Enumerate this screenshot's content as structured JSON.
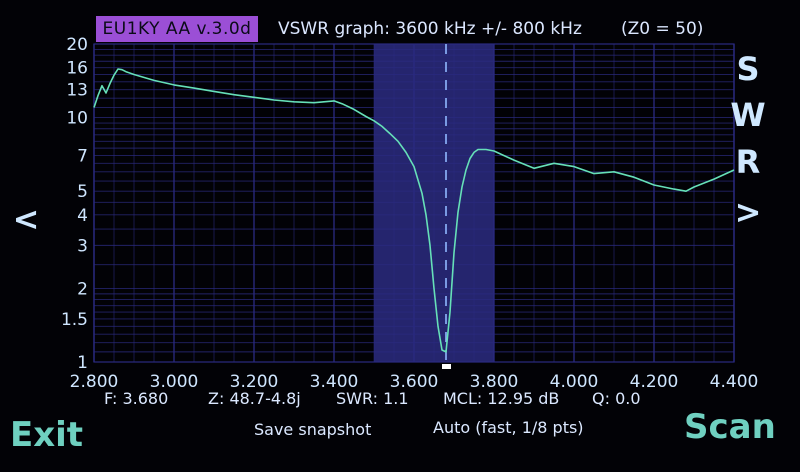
{
  "header": {
    "version_badge": "EU1KY AA v.3.0d",
    "graph_title": "VSWR graph: 3600 kHz +/- 800 kHz",
    "z0": "(Z0 = 50)"
  },
  "side_labels": {
    "prev": "<",
    "next": ">",
    "swr_letters": [
      "S",
      "W",
      "R"
    ]
  },
  "status": {
    "freq": "F: 3.680",
    "impedance": "Z: 48.7-4.8j",
    "swr": "SWR: 1.1",
    "mcl": "MCL: 12.95 dB",
    "q": "Q: 0.0"
  },
  "actions": {
    "exit": "Exit",
    "save_snapshot": "Save snapshot",
    "auto_mode": "Auto (fast, 1/8 pts)",
    "scan": "Scan"
  },
  "colors": {
    "badge": "#9b4fd6",
    "grid": "#2a2a80",
    "trace": "#66e0b8",
    "band_highlight": "#25256e",
    "marker": "#8fb8ff",
    "button_text": "#6fd0c0"
  },
  "chart_data": {
    "type": "line",
    "title": "VSWR graph: 3600 kHz +/- 800 kHz",
    "xlabel": "",
    "ylabel": "",
    "x_ticks": [
      "2.800",
      "3.000",
      "3.200",
      "3.400",
      "3.600",
      "3.800",
      "4.000",
      "4.200",
      "4.400"
    ],
    "y_ticks": [
      "1",
      "1.5",
      "2",
      "3",
      "4",
      "5",
      "7",
      "10",
      "13",
      "16",
      "20"
    ],
    "xlim": [
      2.8,
      4.4
    ],
    "ylim": [
      1,
      20
    ],
    "y_scale": "log",
    "band_highlight_range": [
      3.5,
      3.8
    ],
    "marker_freq": 3.68,
    "series": [
      {
        "x": [
          2.8,
          2.81,
          2.82,
          2.83,
          2.84,
          2.85,
          2.86,
          2.87,
          2.88,
          2.9,
          2.95,
          3.0,
          3.05,
          3.1,
          3.15,
          3.2,
          3.25,
          3.3,
          3.35,
          3.4,
          3.42,
          3.45,
          3.48,
          3.5,
          3.52,
          3.54,
          3.56,
          3.58,
          3.6,
          3.62,
          3.63,
          3.64,
          3.65,
          3.66,
          3.67,
          3.68,
          3.69,
          3.7,
          3.71,
          3.72,
          3.73,
          3.74,
          3.75,
          3.76,
          3.78,
          3.8,
          3.85,
          3.9,
          3.95,
          4.0,
          4.05,
          4.1,
          4.15,
          4.2,
          4.25,
          4.28,
          4.3,
          4.35,
          4.4
        ],
        "values": [
          11.0,
          12.3,
          13.5,
          12.6,
          13.8,
          14.9,
          15.8,
          15.7,
          15.4,
          15.0,
          14.2,
          13.6,
          13.2,
          12.8,
          12.4,
          12.1,
          11.8,
          11.6,
          11.5,
          11.7,
          11.4,
          10.8,
          10.1,
          9.7,
          9.2,
          8.6,
          8.0,
          7.2,
          6.3,
          4.9,
          4.0,
          3.0,
          2.0,
          1.4,
          1.12,
          1.1,
          1.6,
          2.8,
          4.1,
          5.2,
          6.1,
          6.8,
          7.2,
          7.4,
          7.4,
          7.3,
          6.7,
          6.2,
          6.5,
          6.3,
          5.9,
          6.0,
          5.7,
          5.3,
          5.1,
          5.0,
          5.2,
          5.6,
          6.1
        ]
      }
    ]
  }
}
